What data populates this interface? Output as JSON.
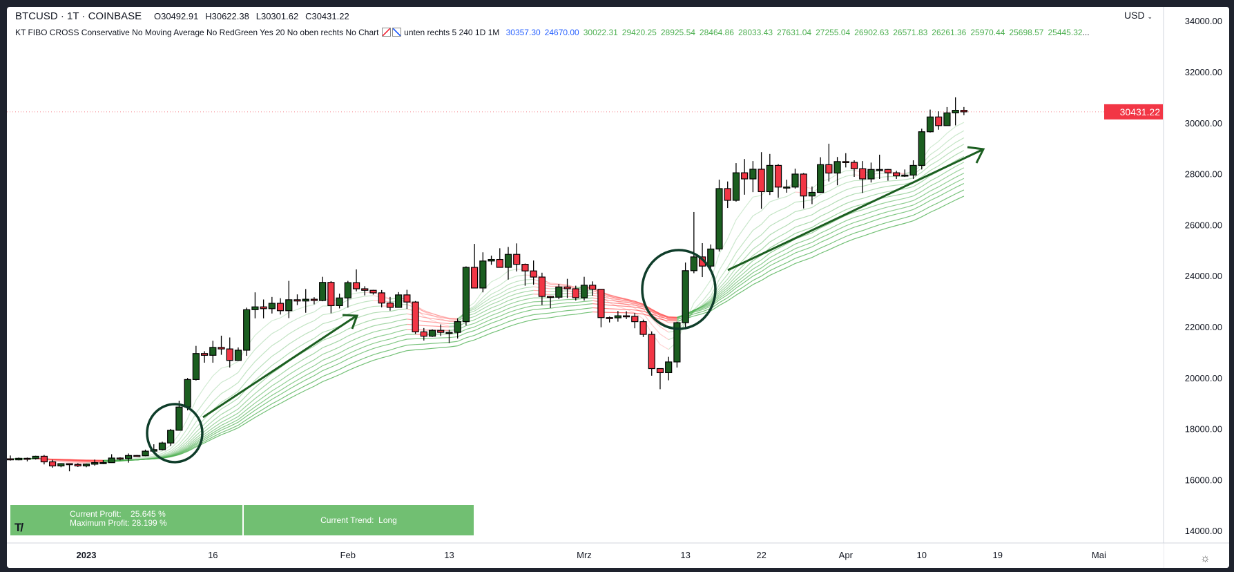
{
  "header": {
    "symbol": "BTCUSD · 1T · COINBASE",
    "open": "O30492.91",
    "high": "H30622.38",
    "low": "L30301.62",
    "close": "C30431.22"
  },
  "indicator": {
    "name": "KT FIBO CROSS Conservative No Moving Average No RedGreen Yes 20 No oben rechts No Chart",
    "params": "unten rechts 5 240 1D 1M",
    "blue_values": [
      "30357.30",
      "24670.00"
    ],
    "green_values": [
      "30022.31",
      "29420.25",
      "28925.54",
      "28464.86",
      "28033.43",
      "27631.04",
      "27255.04",
      "26902.63",
      "26571.83",
      "26261.36",
      "25970.44",
      "25698.57",
      "25445.32"
    ],
    "more": "..."
  },
  "currency": "USD",
  "profit_box": {
    "current_profit": "Current Profit:    25.645 %",
    "maximum_profit": "Maximum Profit: 28.199 %",
    "trend": "Current Trend:  Long"
  },
  "logo_text": "TV",
  "colors": {
    "up": "#1b5e20",
    "down": "#f23645",
    "ribbon_up": "#4caf50",
    "ribbon_down": "#ff5252",
    "price_tag": "#f23645",
    "annotation": "#1b5e20",
    "box": "#71bf72"
  },
  "chart_data": {
    "type": "candlestick",
    "ylim": [
      14000,
      34000
    ],
    "y_ticks": [
      "14000.00",
      "16000.00",
      "18000.00",
      "20000.00",
      "22000.00",
      "24000.00",
      "26000.00",
      "28000.00",
      "30000.00",
      "32000.00",
      "34000.00"
    ],
    "x_ticks": [
      {
        "label": "2023",
        "date": "2023-01-01",
        "bold": true
      },
      {
        "label": "16",
        "date": "2023-01-16"
      },
      {
        "label": "Feb",
        "date": "2023-02-01"
      },
      {
        "label": "13",
        "date": "2023-02-13"
      },
      {
        "label": "Mrz",
        "date": "2023-03-01"
      },
      {
        "label": "13",
        "date": "2023-03-13"
      },
      {
        "label": "22",
        "date": "2023-03-22"
      },
      {
        "label": "Apr",
        "date": "2023-04-01"
      },
      {
        "label": "10",
        "date": "2023-04-10"
      },
      {
        "label": "19",
        "date": "2023-04-19"
      },
      {
        "label": "Mai",
        "date": "2023-05-01"
      }
    ],
    "last_price": "30431.22",
    "columns": [
      "date",
      "open",
      "high",
      "low",
      "close"
    ],
    "candles": [
      [
        "2022-12-22",
        16830,
        16870,
        16560,
        16820
      ],
      [
        "2022-12-23",
        16820,
        16950,
        16750,
        16780
      ],
      [
        "2022-12-24",
        16780,
        16870,
        16760,
        16840
      ],
      [
        "2022-12-25",
        16840,
        16870,
        16720,
        16830
      ],
      [
        "2022-12-26",
        16830,
        16940,
        16790,
        16920
      ],
      [
        "2022-12-27",
        16920,
        16970,
        16600,
        16700
      ],
      [
        "2022-12-28",
        16700,
        16780,
        16470,
        16540
      ],
      [
        "2022-12-29",
        16540,
        16650,
        16490,
        16630
      ],
      [
        "2022-12-30",
        16630,
        16640,
        16330,
        16600
      ],
      [
        "2022-12-31",
        16600,
        16650,
        16500,
        16540
      ],
      [
        "2023-01-01",
        16540,
        16630,
        16490,
        16610
      ],
      [
        "2023-01-02",
        16610,
        16790,
        16550,
        16670
      ],
      [
        "2023-01-03",
        16670,
        16770,
        16610,
        16670
      ],
      [
        "2023-01-04",
        16670,
        17000,
        16660,
        16850
      ],
      [
        "2023-01-05",
        16850,
        16880,
        16760,
        16830
      ],
      [
        "2023-01-06",
        16830,
        17030,
        16670,
        16950
      ],
      [
        "2023-01-07",
        16950,
        16970,
        16910,
        16940
      ],
      [
        "2023-01-08",
        16940,
        17180,
        16920,
        17120
      ],
      [
        "2023-01-09",
        17120,
        17390,
        17100,
        17180
      ],
      [
        "2023-01-10",
        17180,
        17490,
        17150,
        17440
      ],
      [
        "2023-01-11",
        17440,
        17990,
        17320,
        17940
      ],
      [
        "2023-01-12",
        17940,
        19100,
        17930,
        18850
      ],
      [
        "2023-01-13",
        18850,
        19990,
        18720,
        19930
      ],
      [
        "2023-01-14",
        19930,
        21250,
        19890,
        20950
      ],
      [
        "2023-01-15",
        20950,
        21040,
        20590,
        20880
      ],
      [
        "2023-01-16",
        20880,
        21450,
        20590,
        21190
      ],
      [
        "2023-01-17",
        21190,
        21650,
        20900,
        21130
      ],
      [
        "2023-01-18",
        21130,
        21580,
        20400,
        20680
      ],
      [
        "2023-01-19",
        20680,
        21190,
        20670,
        21080
      ],
      [
        "2023-01-20",
        21080,
        22750,
        20860,
        22670
      ],
      [
        "2023-01-21",
        22670,
        23350,
        22330,
        22780
      ],
      [
        "2023-01-22",
        22780,
        23070,
        22330,
        22710
      ],
      [
        "2023-01-23",
        22710,
        23170,
        22520,
        22920
      ],
      [
        "2023-01-24",
        22920,
        23120,
        22480,
        22630
      ],
      [
        "2023-01-25",
        22630,
        23800,
        22340,
        23060
      ],
      [
        "2023-01-26",
        23060,
        23270,
        22850,
        23010
      ],
      [
        "2023-01-27",
        23010,
        23480,
        22550,
        23080
      ],
      [
        "2023-01-28",
        23080,
        23160,
        22880,
        23030
      ],
      [
        "2023-01-29",
        23030,
        23960,
        23000,
        23740
      ],
      [
        "2023-01-30",
        23740,
        23790,
        22530,
        22830
      ],
      [
        "2023-01-31",
        22830,
        23300,
        22720,
        23130
      ],
      [
        "2023-02-01",
        23130,
        23800,
        22750,
        23730
      ],
      [
        "2023-02-02",
        23730,
        24250,
        23390,
        23490
      ],
      [
        "2023-02-03",
        23490,
        23590,
        23230,
        23430
      ],
      [
        "2023-02-04",
        23430,
        23450,
        23260,
        23330
      ],
      [
        "2023-02-05",
        23330,
        23440,
        22760,
        22930
      ],
      [
        "2023-02-06",
        22930,
        23170,
        22630,
        22760
      ],
      [
        "2023-02-07",
        22760,
        23360,
        22750,
        23250
      ],
      [
        "2023-02-08",
        23250,
        23450,
        22700,
        22970
      ],
      [
        "2023-02-09",
        22970,
        23010,
        21720,
        21800
      ],
      [
        "2023-02-10",
        21800,
        21950,
        21460,
        21630
      ],
      [
        "2023-02-11",
        21630,
        21900,
        21600,
        21860
      ],
      [
        "2023-02-12",
        21860,
        22090,
        21640,
        21780
      ],
      [
        "2023-02-13",
        21780,
        21880,
        21360,
        21780
      ],
      [
        "2023-02-14",
        21780,
        22330,
        21540,
        22200
      ],
      [
        "2023-02-15",
        22200,
        24370,
        22050,
        24330
      ],
      [
        "2023-02-16",
        24330,
        25250,
        23510,
        23520
      ],
      [
        "2023-02-17",
        23520,
        24920,
        23350,
        24580
      ],
      [
        "2023-02-18",
        24580,
        24790,
        24430,
        24640
      ],
      [
        "2023-02-19",
        24640,
        25080,
        24320,
        24330
      ],
      [
        "2023-02-20",
        24330,
        25130,
        23850,
        24840
      ],
      [
        "2023-02-21",
        24840,
        25270,
        24170,
        24450
      ],
      [
        "2023-02-22",
        24450,
        24480,
        23610,
        24190
      ],
      [
        "2023-02-23",
        24190,
        24600,
        23650,
        23950
      ],
      [
        "2023-02-24",
        23950,
        24120,
        22850,
        23190
      ],
      [
        "2023-02-25",
        23190,
        23210,
        22730,
        23160
      ],
      [
        "2023-02-26",
        23160,
        23680,
        23080,
        23560
      ],
      [
        "2023-02-27",
        23560,
        23880,
        23130,
        23490
      ],
      [
        "2023-02-28",
        23490,
        23610,
        23030,
        23140
      ],
      [
        "2023-03-01",
        23140,
        23960,
        23030,
        23630
      ],
      [
        "2023-03-02",
        23630,
        23780,
        23220,
        23470
      ],
      [
        "2023-03-03",
        23470,
        23480,
        21980,
        22360
      ],
      [
        "2023-03-04",
        22360,
        22400,
        22170,
        22350
      ],
      [
        "2023-03-05",
        22350,
        22620,
        22200,
        22430
      ],
      [
        "2023-03-06",
        22430,
        22610,
        22300,
        22410
      ],
      [
        "2023-03-07",
        22410,
        22540,
        21940,
        22200
      ],
      [
        "2023-03-08",
        22200,
        22280,
        21600,
        21700
      ],
      [
        "2023-03-09",
        21700,
        21820,
        20080,
        20360
      ],
      [
        "2023-03-10",
        20360,
        20370,
        19550,
        20200
      ],
      [
        "2023-03-11",
        20200,
        20820,
        19900,
        20620
      ],
      [
        "2023-03-12",
        20620,
        22200,
        20400,
        22160
      ],
      [
        "2023-03-13",
        22160,
        24520,
        21900,
        24200
      ],
      [
        "2023-03-14",
        24200,
        26500,
        24100,
        24740
      ],
      [
        "2023-03-15",
        24740,
        25280,
        23950,
        24380
      ],
      [
        "2023-03-16",
        24380,
        25230,
        24190,
        25050
      ],
      [
        "2023-03-17",
        25050,
        27770,
        24950,
        27420
      ],
      [
        "2023-03-18",
        27420,
        27700,
        26660,
        26960
      ],
      [
        "2023-03-19",
        26960,
        28420,
        26910,
        28040
      ],
      [
        "2023-03-20",
        28040,
        28580,
        27180,
        27800
      ],
      [
        "2023-03-21",
        27800,
        28500,
        27280,
        28180
      ],
      [
        "2023-03-22",
        28180,
        28850,
        26630,
        27300
      ],
      [
        "2023-03-23",
        27300,
        28780,
        27170,
        28330
      ],
      [
        "2023-03-24",
        28330,
        28380,
        27060,
        27480
      ],
      [
        "2023-03-25",
        27480,
        27770,
        27260,
        27480
      ],
      [
        "2023-03-26",
        27480,
        28200,
        27420,
        27990
      ],
      [
        "2023-03-27",
        27990,
        28030,
        26640,
        27130
      ],
      [
        "2023-03-28",
        27130,
        27500,
        26810,
        27270
      ],
      [
        "2023-03-29",
        27270,
        28650,
        27250,
        28360
      ],
      [
        "2023-03-30",
        28360,
        29180,
        27700,
        28030
      ],
      [
        "2023-03-31",
        28030,
        28660,
        27550,
        28480
      ],
      [
        "2023-04-01",
        28480,
        28810,
        28250,
        28450
      ],
      [
        "2023-04-02",
        28450,
        28530,
        27880,
        28200
      ],
      [
        "2023-04-03",
        28200,
        28500,
        27250,
        27800
      ],
      [
        "2023-04-04",
        27800,
        28440,
        27660,
        28170
      ],
      [
        "2023-04-05",
        28170,
        28750,
        27800,
        28170
      ],
      [
        "2023-04-06",
        28170,
        28190,
        27730,
        28040
      ],
      [
        "2023-04-07",
        28040,
        28120,
        27800,
        27920
      ],
      [
        "2023-04-08",
        27920,
        28170,
        27880,
        27950
      ],
      [
        "2023-04-09",
        27950,
        28530,
        27800,
        28330
      ],
      [
        "2023-04-10",
        28330,
        29770,
        28170,
        29650
      ],
      [
        "2023-04-11",
        29650,
        30520,
        29620,
        30230
      ],
      [
        "2023-04-12",
        30230,
        30450,
        29730,
        29890
      ],
      [
        "2023-04-13",
        29890,
        30620,
        29890,
        30390
      ],
      [
        "2023-04-14",
        30390,
        31000,
        29900,
        30492.91
      ],
      [
        "2023-04-15",
        30492.91,
        30622.38,
        30301.62,
        30431.22
      ]
    ]
  }
}
